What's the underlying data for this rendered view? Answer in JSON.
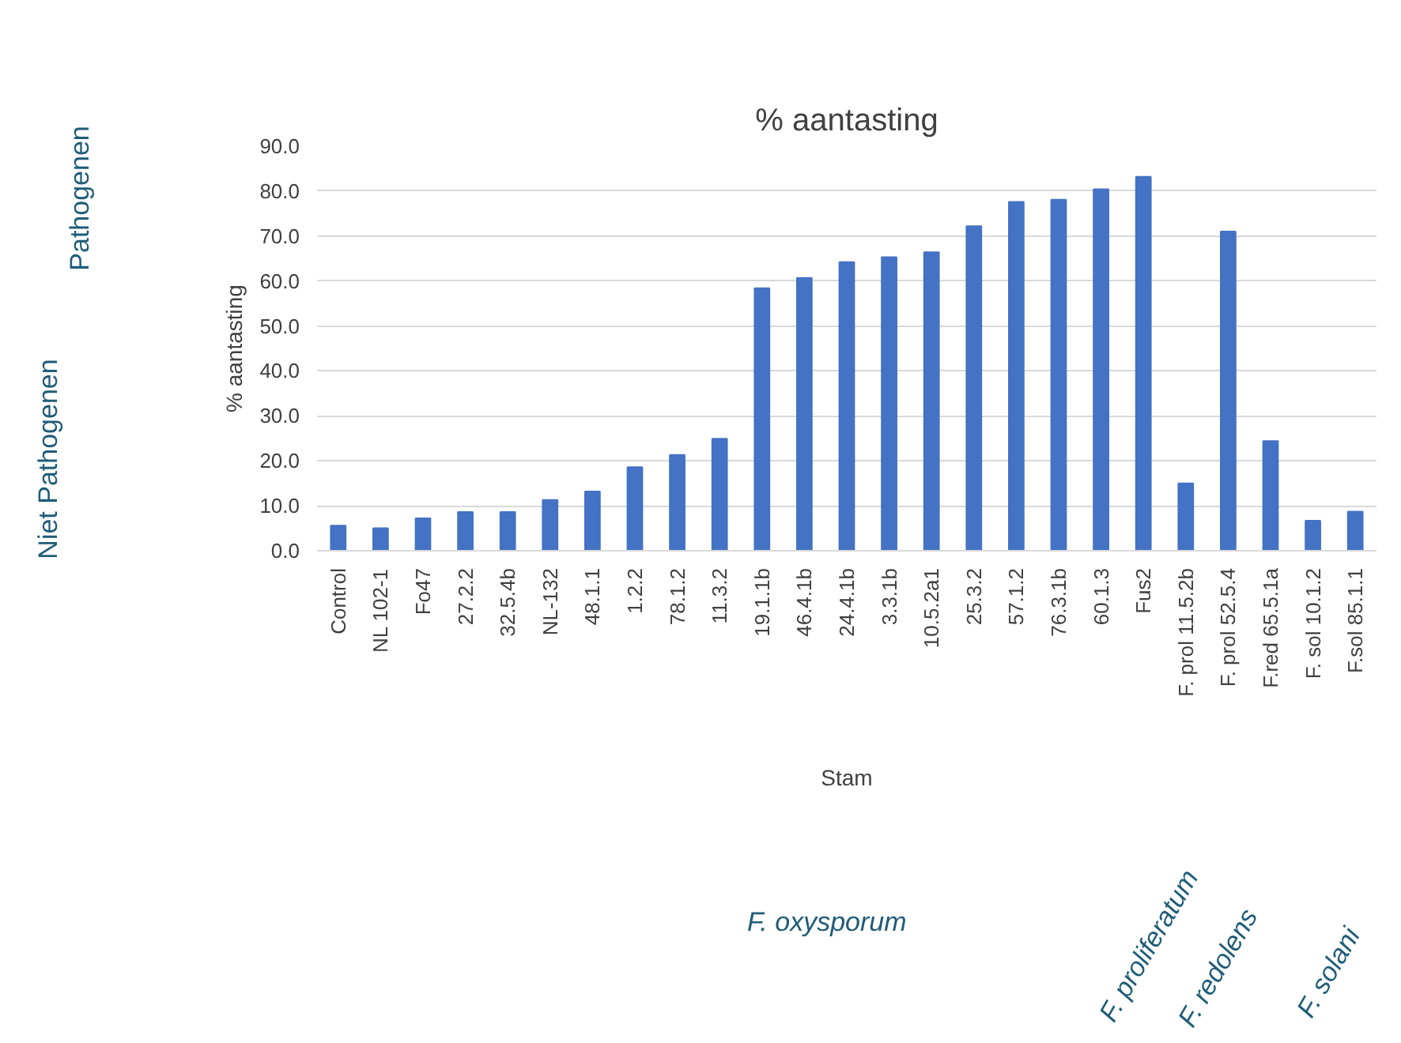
{
  "chart_data": {
    "type": "bar",
    "title": "% aantasting",
    "xlabel": "Stam",
    "ylabel": "% aantasting",
    "categories": [
      "Control",
      "NL 102-1",
      "Fo47",
      "27.2.2",
      "32.5.4b",
      "NL-132",
      "48.1.1",
      "1.2.2",
      "78.1.2",
      "11.3.2",
      "19.1.1b",
      "46.4.1b",
      "24.4.1b",
      "3.3.1b",
      "10.5.2a1",
      "25.3.2",
      "57.1.2",
      "76.3.1b",
      "60.1.3",
      "Fus2",
      "F. prol 11.5.2b",
      "F. prol 52.5.4",
      "F.red 65.5.1a",
      "F. sol 10.1.2",
      "F.sol 85.1.1"
    ],
    "values": [
      5.6,
      5.0,
      7.2,
      8.6,
      8.6,
      11.3,
      13.2,
      18.6,
      21.3,
      24.9,
      58.4,
      60.7,
      64.2,
      65.3,
      66.4,
      72.2,
      77.6,
      78.1,
      80.4,
      83.2,
      15.0,
      71.0,
      24.4,
      6.7,
      8.7
    ],
    "color": "#4472c4",
    "ylim": [
      0,
      90
    ],
    "yticks": [
      {
        "value": 0,
        "label": "0.0"
      },
      {
        "value": 10,
        "label": "10.0"
      },
      {
        "value": 20,
        "label": "20.0"
      },
      {
        "value": 30,
        "label": "30.0"
      },
      {
        "value": 40,
        "label": "40.0"
      },
      {
        "value": 50,
        "label": "50.0"
      },
      {
        "value": 60,
        "label": "60.0"
      },
      {
        "value": 70,
        "label": "70.0"
      },
      {
        "value": 80,
        "label": "80.0"
      },
      {
        "value": 90,
        "label": "90.0"
      }
    ],
    "grid": "y",
    "annotations": [
      "Pathogenen",
      "Niet Pathogenen",
      "F. oxysporum",
      "F. proliferatum",
      "F. redolens",
      "F. solani"
    ]
  }
}
